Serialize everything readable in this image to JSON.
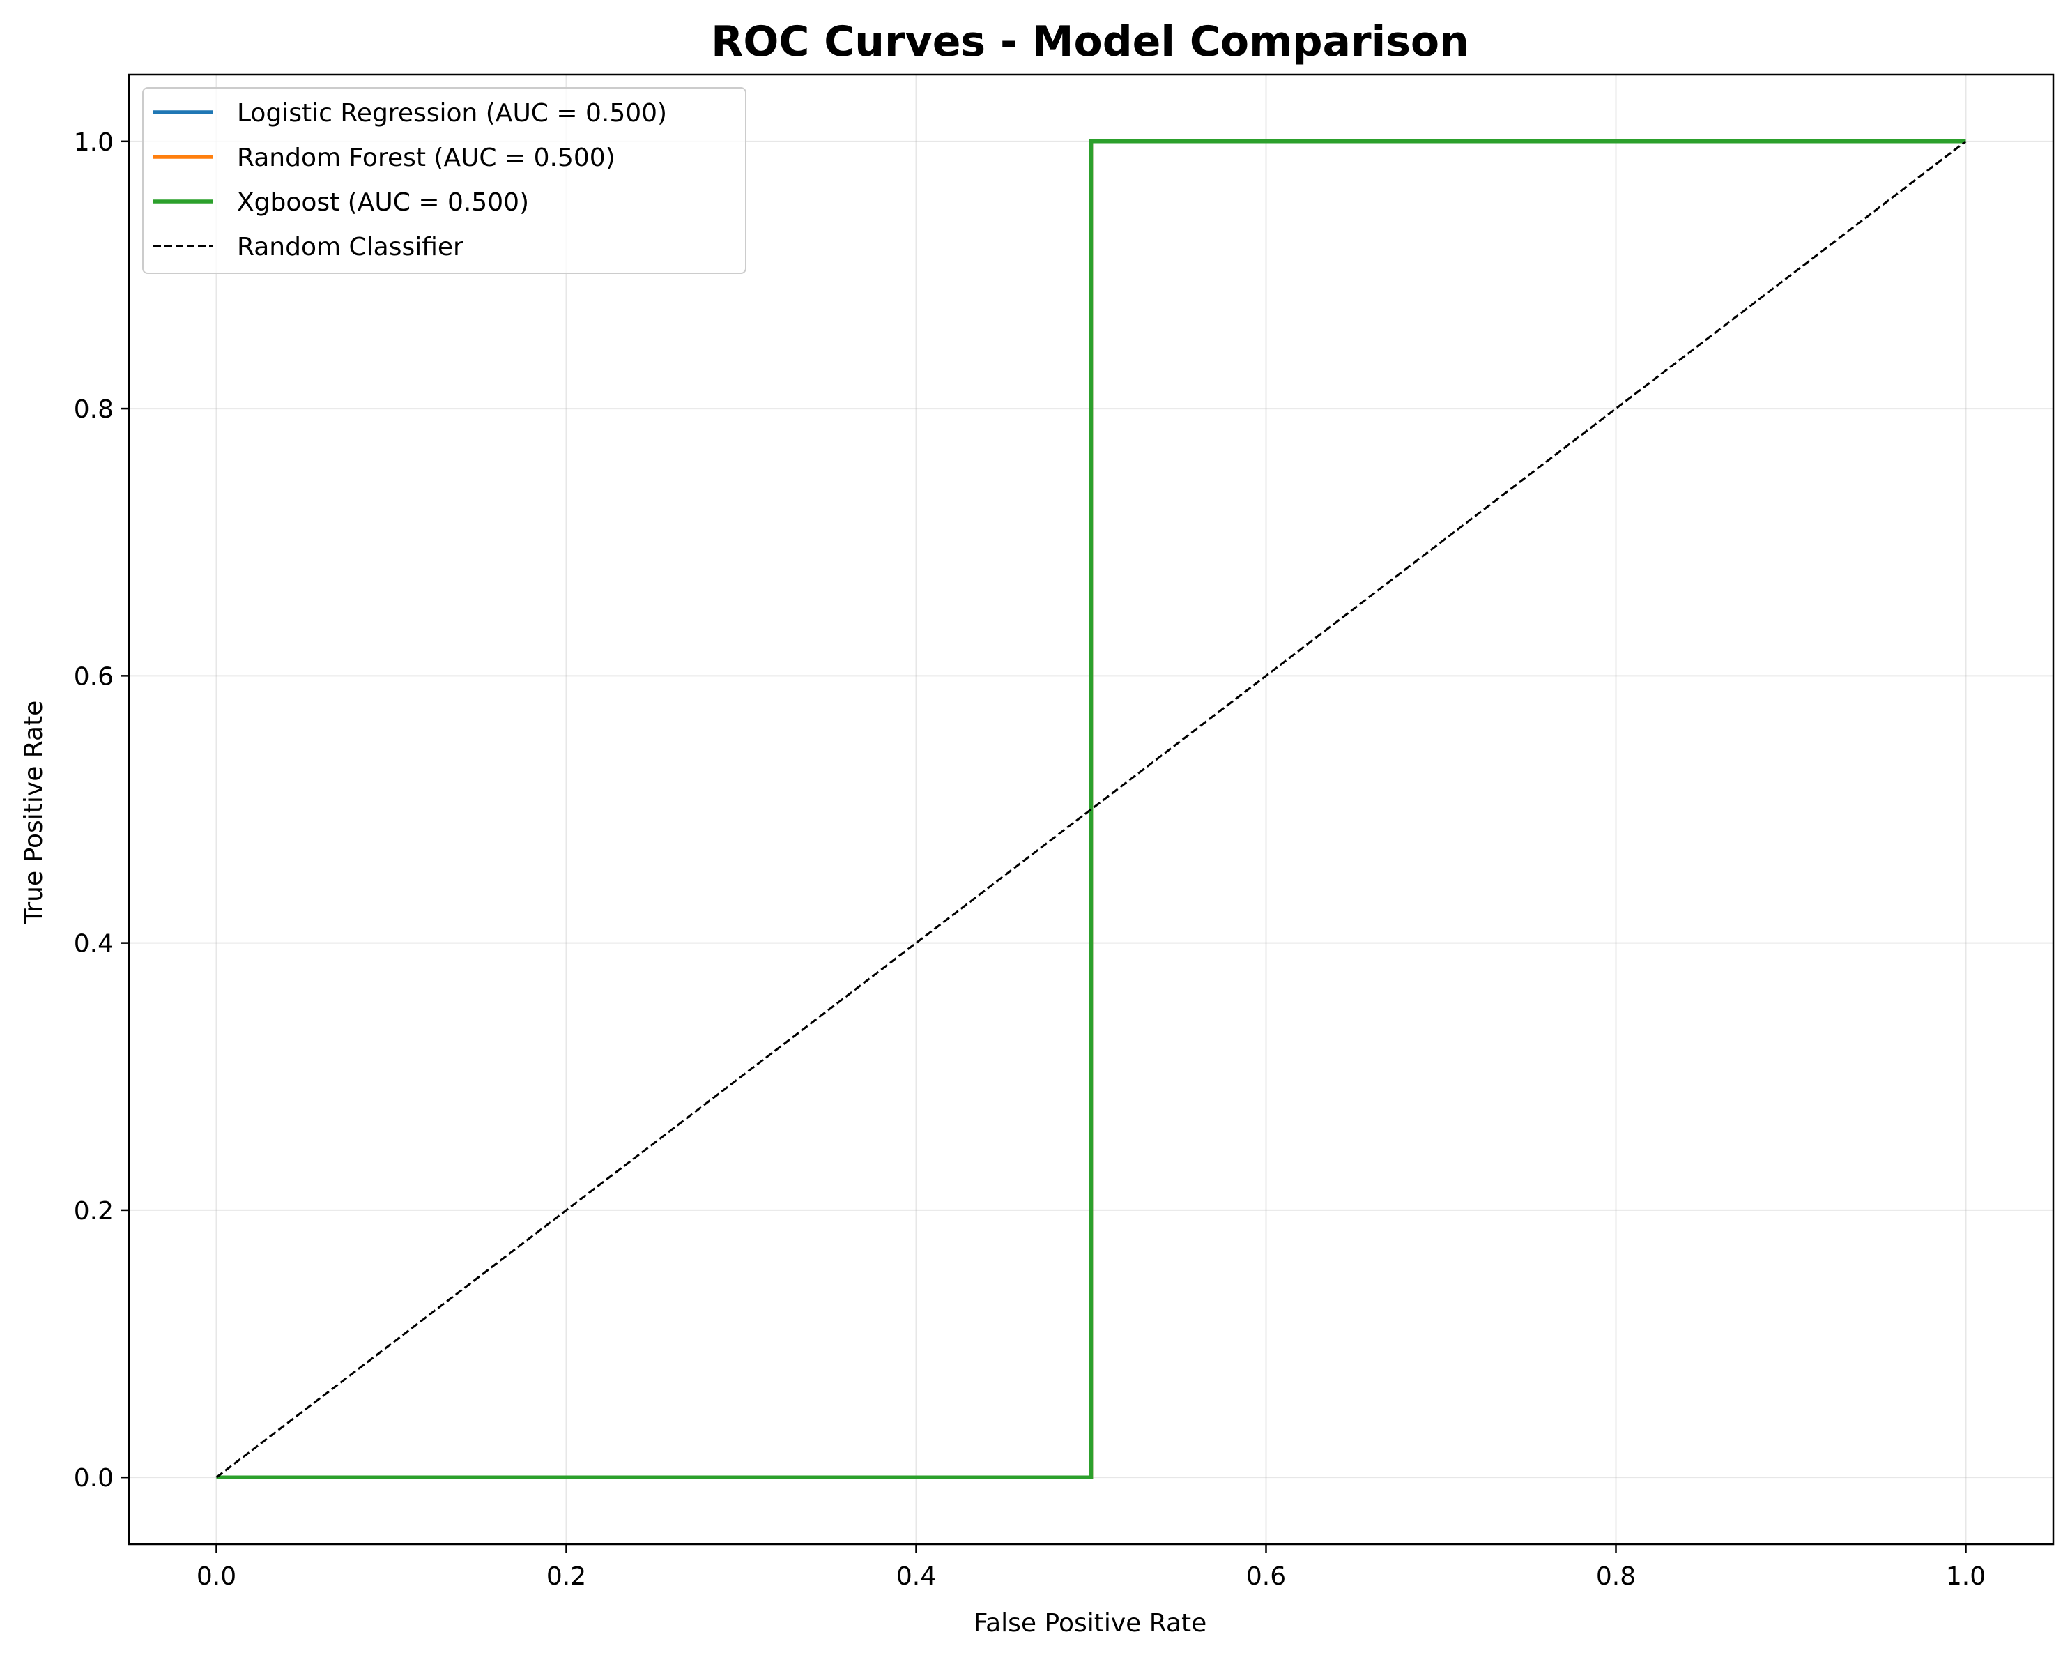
{
  "chart_data": {
    "type": "line",
    "title": "ROC Curves - Model Comparison",
    "xlabel": "False Positive Rate",
    "ylabel": "True Positive Rate",
    "xlim": [
      -0.05,
      1.05
    ],
    "ylim": [
      -0.05,
      1.05
    ],
    "x_ticks": [
      0.0,
      0.2,
      0.4,
      0.6,
      0.8,
      1.0
    ],
    "x_tick_labels": [
      "0.0",
      "0.2",
      "0.4",
      "0.6",
      "0.8",
      "1.0"
    ],
    "y_ticks": [
      0.0,
      0.2,
      0.4,
      0.6,
      0.8,
      1.0
    ],
    "y_tick_labels": [
      "0.0",
      "0.2",
      "0.4",
      "0.6",
      "0.8",
      "1.0"
    ],
    "grid": true,
    "legend_position": "top-left",
    "series": [
      {
        "name": "Logistic Regression (AUC = 0.500)",
        "color": "#1f77b4",
        "style": "solid",
        "x": [
          0.0,
          0.5,
          0.5,
          1.0
        ],
        "y": [
          0.0,
          0.0,
          1.0,
          1.0
        ]
      },
      {
        "name": "Random Forest (AUC = 0.500)",
        "color": "#ff7f0e",
        "style": "solid",
        "x": [
          0.0,
          0.5,
          0.5,
          1.0
        ],
        "y": [
          0.0,
          0.0,
          1.0,
          1.0
        ]
      },
      {
        "name": "Xgboost (AUC = 0.500)",
        "color": "#2ca02c",
        "style": "solid",
        "x": [
          0.0,
          0.5,
          0.5,
          1.0
        ],
        "y": [
          0.0,
          0.0,
          1.0,
          1.0
        ]
      },
      {
        "name": "Random Classifier",
        "color": "#000000",
        "style": "dashed",
        "x": [
          0.0,
          1.0
        ],
        "y": [
          0.0,
          1.0
        ]
      }
    ]
  }
}
